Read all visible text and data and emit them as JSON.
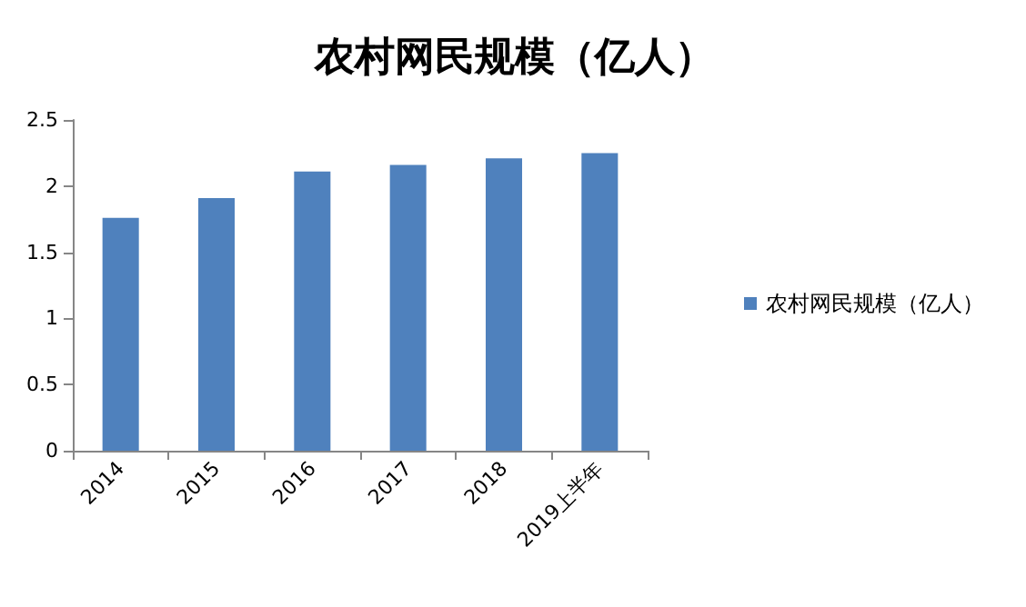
{
  "chart_data": {
    "type": "bar",
    "title": "农村网民规模（亿人）",
    "categories": [
      "2014",
      "2015",
      "2016",
      "2017",
      "2018",
      "2019上半年"
    ],
    "series": [
      {
        "name": "农村网民规模（亿人）",
        "color": "#4f81bd",
        "values": [
          1.76,
          1.91,
          2.11,
          2.16,
          2.21,
          2.25
        ]
      }
    ],
    "ylim": [
      0,
      2.5
    ],
    "yticks": [
      0,
      0.5,
      1,
      1.5,
      2,
      2.5
    ],
    "grid": false,
    "legend": "right"
  }
}
